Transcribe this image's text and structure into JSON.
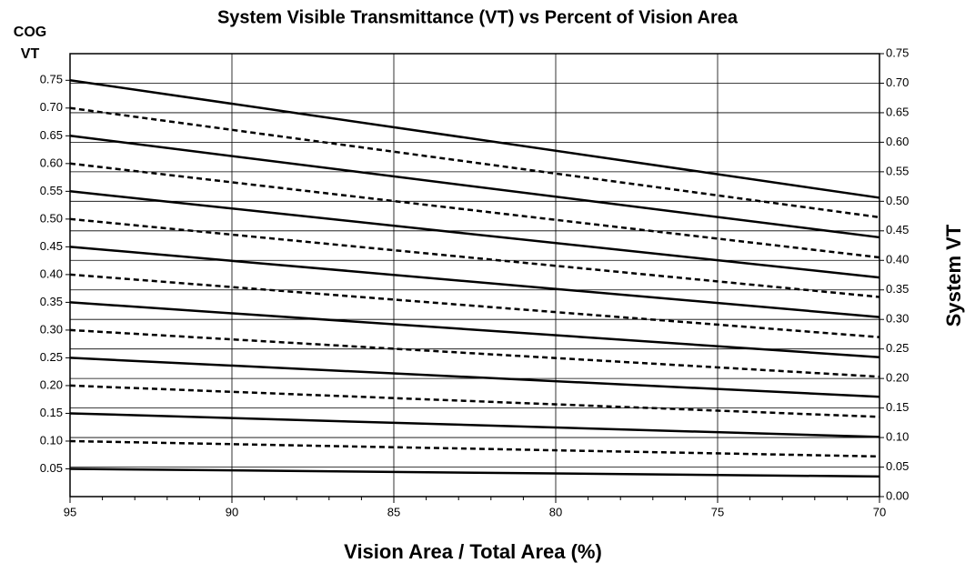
{
  "chart_data": {
    "type": "line",
    "title": "System Visible Transmittance (VT) vs Percent of Vision Area",
    "xlabel": "Vision Area / Total Area (%)",
    "ylabel": [
      "COG",
      "VT"
    ],
    "y2label": "System VT",
    "x": [
      95,
      70
    ],
    "xlim": [
      95,
      70
    ],
    "xticks": [
      95,
      90,
      85,
      80,
      75,
      70
    ],
    "x_minor_interval": 1,
    "ylim": [
      0,
      0.798
    ],
    "yticks": [
      0.05,
      {
        "value": 0.1,
        "label": "0.10"
      },
      0.15,
      {
        "value": 0.2,
        "label": "0.20"
      },
      0.25,
      {
        "value": 0.3,
        "label": "0.30"
      },
      0.35,
      {
        "value": 0.4,
        "label": "0.40"
      },
      0.45,
      {
        "value": 0.5,
        "label": "0.50"
      },
      0.55,
      {
        "value": 0.6,
        "label": "0.60"
      },
      0.65,
      {
        "value": 0.7,
        "label": "0.70"
      },
      0.75
    ],
    "y2lim": [
      0,
      0.75
    ],
    "y2ticks": [
      {
        "value": 0,
        "label": "0.00"
      },
      0.05,
      {
        "value": 0.1,
        "label": "0.10"
      },
      0.15,
      {
        "value": 0.2,
        "label": "0.20"
      },
      0.25,
      {
        "value": 0.3,
        "label": "0.30"
      },
      0.35,
      {
        "value": 0.4,
        "label": "0.40"
      },
      0.45,
      {
        "value": 0.5,
        "label": "0.50"
      },
      0.55,
      {
        "value": 0.6,
        "label": "0.60"
      },
      0.65,
      {
        "value": 0.7,
        "label": "0.70"
      },
      0.75
    ],
    "grid": true,
    "series": [
      {
        "color": "#000000",
        "style": "solid",
        "axis": "y2",
        "values": [
          0.047,
          0.034
        ]
      },
      {
        "color": "#000000",
        "style": "dashed",
        "axis": "y2",
        "values": [
          0.094,
          0.068
        ]
      },
      {
        "color": "#000000",
        "style": "solid",
        "axis": "y2",
        "values": [
          0.141,
          0.101
        ]
      },
      {
        "color": "#000000",
        "style": "dashed",
        "axis": "y2",
        "values": [
          0.188,
          0.135
        ]
      },
      {
        "color": "#000000",
        "style": "solid",
        "axis": "y2",
        "values": [
          0.235,
          0.169
        ]
      },
      {
        "color": "#000000",
        "style": "dashed",
        "axis": "y2",
        "values": [
          0.282,
          0.203
        ]
      },
      {
        "color": "#000000",
        "style": "solid",
        "axis": "y2",
        "values": [
          0.329,
          0.236
        ]
      },
      {
        "color": "#000000",
        "style": "dashed",
        "axis": "y2",
        "values": [
          0.376,
          0.27
        ]
      },
      {
        "color": "#000000",
        "style": "solid",
        "axis": "y2",
        "values": [
          0.423,
          0.304
        ]
      },
      {
        "color": "#000000",
        "style": "dashed",
        "axis": "y2",
        "values": [
          0.47,
          0.338
        ]
      },
      {
        "color": "#000000",
        "style": "solid",
        "axis": "y2",
        "values": [
          0.517,
          0.371
        ]
      },
      {
        "color": "#000000",
        "style": "dashed",
        "axis": "y2",
        "values": [
          0.564,
          0.405
        ]
      },
      {
        "color": "#000000",
        "style": "solid",
        "axis": "y2",
        "values": [
          0.611,
          0.439
        ]
      },
      {
        "color": "#000000",
        "style": "dashed",
        "axis": "y2",
        "values": [
          0.658,
          0.473
        ]
      },
      {
        "color": "#000000",
        "style": "solid",
        "axis": "y2",
        "values": [
          0.705,
          0.506
        ]
      }
    ]
  }
}
